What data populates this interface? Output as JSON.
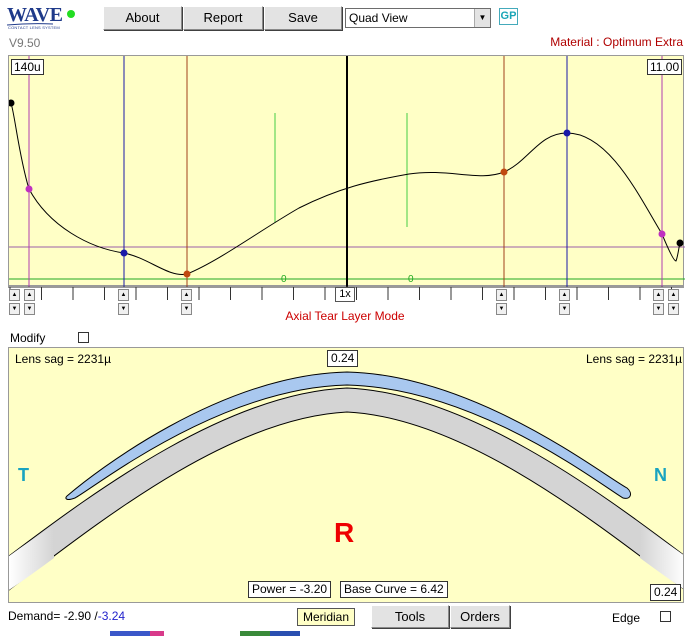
{
  "header": {
    "logo_text": "WAVE",
    "logo_sub": "CONTACT LENS SYSTEM",
    "version": "V9.50",
    "buttons": {
      "about": "About",
      "report": "Report",
      "save": "Save"
    },
    "view_select": "Quad View",
    "gp_badge": "GP",
    "material": "Material : Optimum Extra"
  },
  "tear_panel": {
    "left_scale": "140u",
    "right_scale": "11.00",
    "zoom": "1x",
    "mode": "Axial Tear Layer Mode",
    "zero_marks": [
      "0",
      "0"
    ]
  },
  "modify_label": "Modify",
  "lens_panel": {
    "sag_left": "Lens sag = 2231µ",
    "sag_right": "Lens sag = 2231µ",
    "top_value": "0.24",
    "bottom_value": "0.24",
    "side_left": "T",
    "side_right": "N",
    "center_label": "R",
    "power": "Power = -3.20",
    "base_curve": "Base Curve = 6.42"
  },
  "footer": {
    "demand": "Demand= -2.90 /",
    "demand_alt": "-3.24",
    "meridian": "Meridian",
    "tools": "Tools",
    "orders": "Orders",
    "edge": "Edge"
  },
  "colors": {
    "panel_bg": "#ffffc6",
    "brand": "#1f3a8a",
    "material": "#b00000",
    "mode": "#cc0000",
    "side_label": "#19a3c0",
    "center_label": "#ee0000",
    "lens_fill": "#a9c8ef",
    "cornea_fill": "#d4d4d4"
  }
}
